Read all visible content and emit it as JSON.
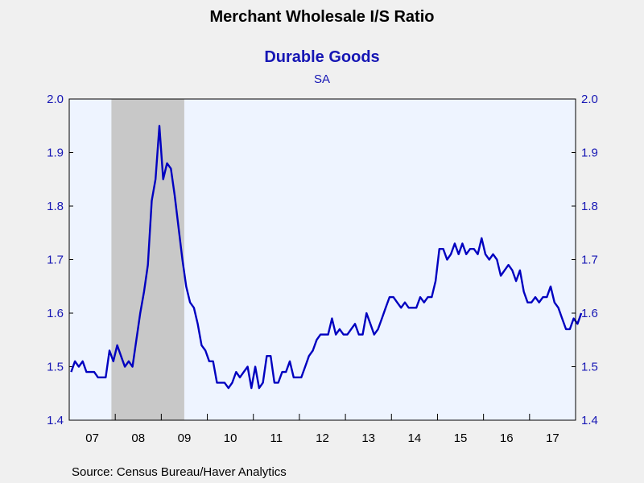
{
  "chart_data": {
    "type": "line",
    "title": "Merchant Wholesale I/S Ratio",
    "subtitle": "Durable Goods",
    "note": "SA",
    "source": "Source:  Census Bureau/Haver Analytics",
    "xlabel": "",
    "ylabel": "",
    "ylim": [
      1.4,
      2.0
    ],
    "y_ticks": [
      "1.4",
      "1.5",
      "1.6",
      "1.7",
      "1.8",
      "1.9",
      "2.0"
    ],
    "x_tick_labels": [
      "07",
      "08",
      "09",
      "10",
      "11",
      "12",
      "13",
      "14",
      "15",
      "16",
      "17"
    ],
    "x_range": [
      "2007-01",
      "2017-12"
    ],
    "grid": false,
    "colors": {
      "line": "#0000c0",
      "plot_bg": "#eef4ff",
      "page_bg": "#f0f0f0",
      "recession": "#c8c8c8",
      "axis_text": "#1616b4"
    },
    "recession": {
      "start": "2007-12",
      "end": "2009-06"
    },
    "series": [
      {
        "start": "2007-01",
        "frequency": "monthly",
        "values": [
          1.49,
          1.51,
          1.5,
          1.51,
          1.49,
          1.49,
          1.49,
          1.48,
          1.48,
          1.48,
          1.53,
          1.51,
          1.54,
          1.52,
          1.5,
          1.51,
          1.5,
          1.55,
          1.6,
          1.64,
          1.69,
          1.81,
          1.85,
          1.95,
          1.85,
          1.88,
          1.87,
          1.82,
          1.76,
          1.7,
          1.65,
          1.62,
          1.61,
          1.58,
          1.54,
          1.53,
          1.51,
          1.51,
          1.47,
          1.47,
          1.47,
          1.46,
          1.47,
          1.49,
          1.48,
          1.49,
          1.5,
          1.46,
          1.5,
          1.46,
          1.47,
          1.52,
          1.52,
          1.47,
          1.47,
          1.49,
          1.49,
          1.51,
          1.48,
          1.48,
          1.48,
          1.5,
          1.52,
          1.53,
          1.55,
          1.56,
          1.56,
          1.56,
          1.59,
          1.56,
          1.57,
          1.56,
          1.56,
          1.57,
          1.58,
          1.56,
          1.56,
          1.6,
          1.58,
          1.56,
          1.57,
          1.59,
          1.61,
          1.63,
          1.63,
          1.62,
          1.61,
          1.62,
          1.61,
          1.61,
          1.61,
          1.63,
          1.62,
          1.63,
          1.63,
          1.66,
          1.72,
          1.72,
          1.7,
          1.71,
          1.73,
          1.71,
          1.73,
          1.71,
          1.72,
          1.72,
          1.71,
          1.74,
          1.71,
          1.7,
          1.71,
          1.7,
          1.67,
          1.68,
          1.69,
          1.68,
          1.66,
          1.68,
          1.64,
          1.62,
          1.62,
          1.63,
          1.62,
          1.63,
          1.63,
          1.65,
          1.62,
          1.61,
          1.59,
          1.57,
          1.57,
          1.59,
          1.58,
          1.6
        ]
      }
    ]
  }
}
